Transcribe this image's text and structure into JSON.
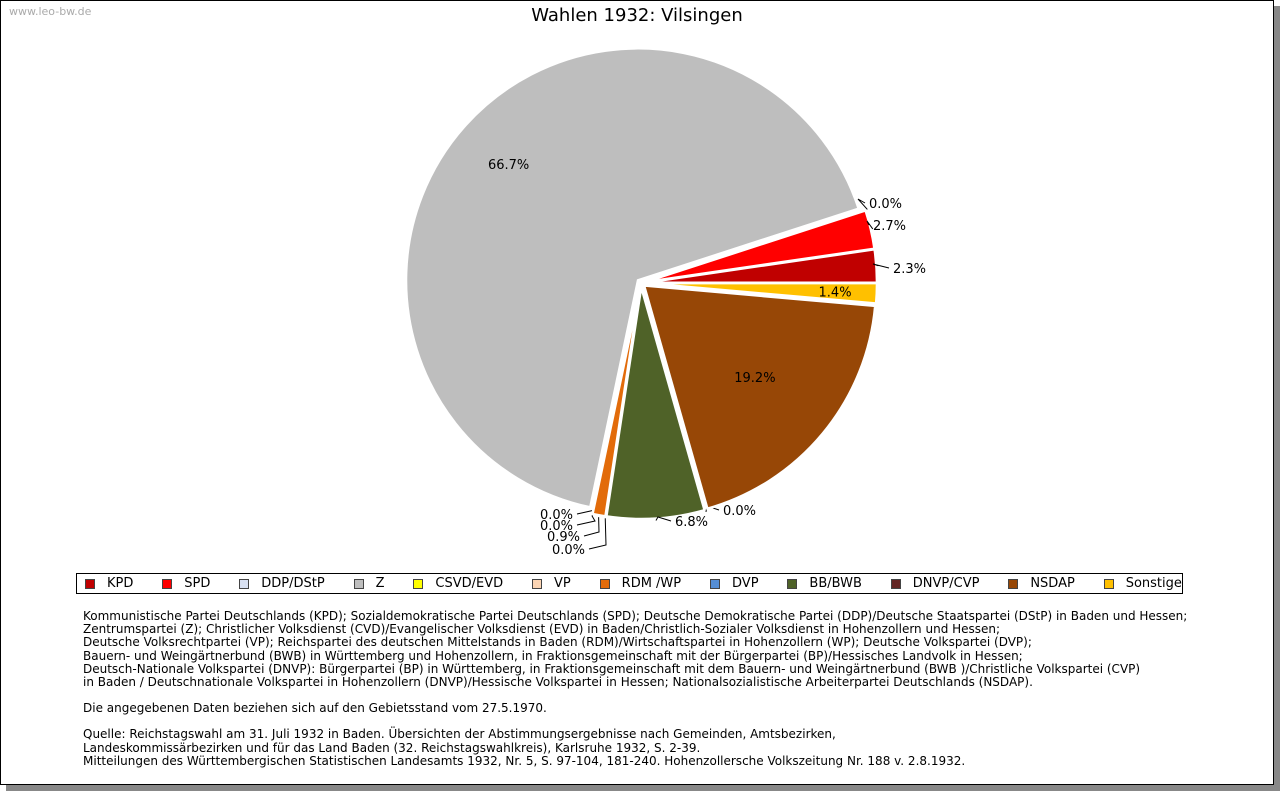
{
  "watermark": "www.leo-bw.de",
  "chart_data": {
    "type": "pie",
    "title": "Wahlen 1932: Vilsingen",
    "categories": [
      "KPD",
      "SPD",
      "DDP/DStP",
      "Z",
      "CSVD/EVD",
      "VP",
      "RDM /WP",
      "DVP",
      "BB/BWB",
      "DNVP/CVP",
      "NSDAP",
      "Sonstige"
    ],
    "values": [
      2.3,
      2.7,
      0.0,
      66.7,
      0.0,
      0.0,
      0.9,
      0.0,
      6.8,
      0.0,
      19.2,
      1.4
    ],
    "labels": [
      "2.3%",
      "2.7%",
      "0.0%",
      "66.7%",
      "0.0%",
      "0.0%",
      "0.9%",
      "0.0%",
      "6.8%",
      "0.0%",
      "19.2%",
      "1.4%"
    ],
    "colors": [
      "#c00000",
      "#ff0000",
      "#d9e1f2",
      "#bebebe",
      "#ffff00",
      "#fcd5b4",
      "#e26b0a",
      "#558ed5",
      "#4f6228",
      "#632523",
      "#974706",
      "#ffc000"
    ],
    "legend_position": "bottom"
  },
  "notes": {
    "parties": [
      "Kommunistische Partei Deutschlands (KPD); Sozialdemokratische Partei Deutschlands (SPD); Deutsche Demokratische Partei (DDP)/Deutsche Staatspartei (DStP) in Baden und Hessen;",
      "Zentrumspartei (Z); Christlicher Volksdienst (CVD)/Evangelischer Volksdienst (EVD) in Baden/Christlich-Sozialer Volksdienst in Hohenzollern und Hessen;",
      "Deutsche Volksrechtpartei (VP); Reichspartei des deutschen Mittelstands in Baden (RDM)/Wirtschaftspartei in Hohenzollern (WP); Deutsche Volkspartei (DVP);",
      "Bauern- und Weingärtnerbund (BWB) in Württemberg und Hohenzollern, in Fraktionsgemeinschaft mit der Bürgerpartei (BP)/Hessisches Landvolk in Hessen;",
      "Deutsch-Nationale Volkspartei (DNVP): Bürgerpartei (BP) in Württemberg, in Fraktionsgemeinschaft mit dem Bauern- und Weingärtnerbund (BWB )/Christliche Volkspartei (CVP)",
      "in Baden / Deutschnationale Volkspartei in Hohenzollern (DNVP)/Hessische Volkspartei in Hessen; Nationalsozialistische Arbeiterpartei Deutschlands (NSDAP)."
    ],
    "gebiet": "Die angegebenen Daten beziehen sich auf den Gebietsstand vom 27.5.1970.",
    "quelle": [
      "Quelle: Reichstagswahl am 31. Juli 1932 in Baden. Übersichten der Abstimmungsergebnisse nach Gemeinden, Amtsbezirken,",
      "Landeskommissärbezirken und für das Land Baden (32. Reichstagswahlkreis), Karlsruhe 1932, S. 2-39.",
      "Mitteilungen des Württembergischen Statistischen Landesamts 1932, Nr. 5, S. 97-104, 181-240. Hohenzollersche Volkszeitung Nr. 188 v. 2.8.1932."
    ]
  }
}
